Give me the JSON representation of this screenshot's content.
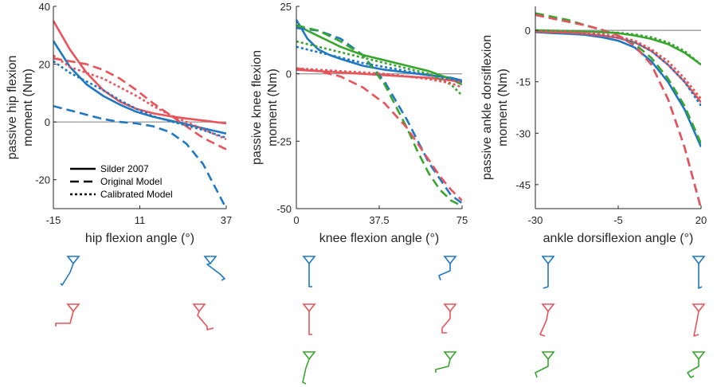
{
  "colors": {
    "blue": "#1f78c1",
    "red": "#e8545a",
    "green": "#38a52e",
    "axis": "#262626",
    "zero": "#a0a0a0"
  },
  "legend": {
    "items": [
      {
        "label": "Silder 2007",
        "style": "solid"
      },
      {
        "label": "Original Model",
        "style": "dashed"
      },
      {
        "label": "Calibrated Model",
        "style": "dotted"
      }
    ]
  },
  "chart_data": [
    {
      "type": "line",
      "title": "",
      "xlabel": "hip flexion angle (°)",
      "ylabel": [
        "passive hip flexion",
        "moment (Nm)"
      ],
      "xlim": [
        -15,
        37
      ],
      "ylim": [
        -30,
        40
      ],
      "xticks": [
        -15,
        11,
        37
      ],
      "yticks": [
        -20,
        0,
        20,
        40
      ],
      "xtick_labels": [
        "-15",
        "11",
        "37"
      ],
      "ytick_labels": [
        "-20",
        "0",
        "20",
        "40"
      ],
      "series": [
        {
          "color": "red",
          "style": "solid",
          "x": [
            -15,
            -10,
            -5,
            0,
            5,
            10,
            15,
            20,
            25,
            30,
            37
          ],
          "y": [
            35,
            25,
            17,
            11,
            7,
            4.5,
            3,
            2,
            1.2,
            0.5,
            -0.5
          ]
        },
        {
          "color": "blue",
          "style": "solid",
          "x": [
            -15,
            -10,
            -5,
            0,
            5,
            10,
            15,
            20,
            25,
            30,
            37
          ],
          "y": [
            28,
            19,
            13,
            9,
            6,
            3.5,
            1.8,
            0.5,
            -0.8,
            -2.2,
            -4
          ]
        },
        {
          "color": "red",
          "style": "dashed",
          "x": [
            -15,
            -10,
            -5,
            0,
            5,
            10,
            15,
            20,
            25,
            30,
            37
          ],
          "y": [
            22,
            21,
            20,
            18,
            15,
            11,
            6.5,
            2.5,
            -1.5,
            -5.5,
            -9.5
          ]
        },
        {
          "color": "blue",
          "style": "dashed",
          "x": [
            -15,
            -10,
            -5,
            0,
            5,
            10,
            15,
            20,
            25,
            30,
            37
          ],
          "y": [
            5.5,
            4,
            2.5,
            1,
            0,
            -0.5,
            -1.5,
            -3.5,
            -7.5,
            -14.5,
            -30
          ]
        },
        {
          "color": "red",
          "style": "dotted",
          "x": [
            -15,
            -10,
            -5,
            0,
            5,
            10,
            15,
            20,
            25,
            30,
            37
          ],
          "y": [
            23,
            19,
            17,
            15,
            12,
            9,
            5.5,
            2.5,
            0,
            -2.5,
            -6
          ]
        },
        {
          "color": "blue",
          "style": "dotted",
          "x": [
            -15,
            -10,
            -5,
            0,
            5,
            10,
            15,
            20,
            25,
            30,
            37
          ],
          "y": [
            21,
            17,
            14,
            11,
            7.5,
            4.5,
            2,
            0.3,
            -1.2,
            -2.8,
            -5.5
          ]
        }
      ]
    },
    {
      "type": "line",
      "title": "",
      "xlabel": "knee flexion angle (°)",
      "ylabel": [
        "passive knee flexion",
        "moment (Nm)"
      ],
      "xlim": [
        0,
        75
      ],
      "ylim": [
        -50,
        25
      ],
      "xticks": [
        0,
        37.5,
        75
      ],
      "yticks": [
        -50,
        -25,
        0,
        25
      ],
      "xtick_labels": [
        "0",
        "37.5",
        "75"
      ],
      "ytick_labels": [
        "-50",
        "-25",
        "0",
        "25"
      ],
      "series": [
        {
          "color": "blue",
          "style": "solid",
          "x": [
            0,
            5,
            10,
            15,
            20,
            30,
            40,
            50,
            60,
            70,
            75
          ],
          "y": [
            20,
            13,
            9,
            7,
            5.5,
            3,
            1.5,
            0.5,
            -0.5,
            -1.5,
            -2.5
          ]
        },
        {
          "color": "green",
          "style": "solid",
          "x": [
            0,
            5,
            10,
            15,
            20,
            30,
            40,
            50,
            60,
            70,
            75
          ],
          "y": [
            18,
            16,
            14,
            12,
            10,
            7,
            5,
            3,
            1,
            -2,
            -4
          ]
        },
        {
          "color": "red",
          "style": "solid",
          "x": [
            0,
            10,
            20,
            30,
            40,
            50,
            60,
            70,
            75
          ],
          "y": [
            1.5,
            1,
            0.5,
            0,
            -0.5,
            -1,
            -1.5,
            -2.5,
            -3
          ]
        },
        {
          "color": "blue",
          "style": "dashed",
          "x": [
            0,
            10,
            20,
            30,
            40,
            50,
            60,
            70,
            75
          ],
          "y": [
            17,
            16,
            13,
            7,
            -3,
            -17,
            -33,
            -45,
            -48
          ]
        },
        {
          "color": "green",
          "style": "dashed",
          "x": [
            0,
            10,
            20,
            30,
            40,
            50,
            55,
            60,
            65,
            70,
            75
          ],
          "y": [
            18,
            16,
            12,
            7,
            -4,
            -20,
            -29,
            -37,
            -43,
            -47,
            -49
          ]
        },
        {
          "color": "red",
          "style": "dashed",
          "x": [
            0,
            10,
            20,
            30,
            40,
            50,
            55,
            60,
            65,
            70,
            75
          ],
          "y": [
            2,
            1,
            -1,
            -5,
            -11,
            -20,
            -26,
            -32,
            -38,
            -43,
            -47
          ]
        },
        {
          "color": "blue",
          "style": "dotted",
          "x": [
            0,
            10,
            20,
            30,
            40,
            50,
            60,
            70,
            75
          ],
          "y": [
            10,
            8,
            6,
            4,
            2.5,
            1,
            -0.5,
            -2,
            -3
          ]
        },
        {
          "color": "green",
          "style": "dotted",
          "x": [
            0,
            10,
            20,
            30,
            40,
            50,
            60,
            70,
            75
          ],
          "y": [
            12,
            10,
            8,
            6,
            4,
            2,
            0,
            -4,
            -8
          ]
        },
        {
          "color": "red",
          "style": "dotted",
          "x": [
            0,
            10,
            20,
            30,
            40,
            50,
            60,
            70,
            75
          ],
          "y": [
            2,
            1.5,
            1,
            0.5,
            0,
            -1,
            -2,
            -3.5,
            -5
          ]
        }
      ]
    },
    {
      "type": "line",
      "title": "",
      "xlabel": "ankle dorsiflexion angle (°)",
      "ylabel": [
        "passive ankle dorsiflexion",
        "moment (Nm)"
      ],
      "xlim": [
        -30,
        20
      ],
      "ylim": [
        -52,
        7
      ],
      "xticks": [
        -30,
        -5,
        20
      ],
      "yticks": [
        -45,
        -30,
        -15,
        0
      ],
      "xtick_labels": [
        "-30",
        "-5",
        "20"
      ],
      "ytick_labels": [
        "-45",
        "-30",
        "-15",
        "0"
      ],
      "series": [
        {
          "color": "blue",
          "style": "solid",
          "x": [
            -30,
            -25,
            -20,
            -15,
            -10,
            -5,
            0,
            5,
            10,
            15,
            20
          ],
          "y": [
            -0.5,
            -0.8,
            -1,
            -1.3,
            -2,
            -3,
            -5,
            -9,
            -15,
            -23,
            -34
          ]
        },
        {
          "color": "red",
          "style": "solid",
          "x": [
            -30,
            -25,
            -20,
            -15,
            -10,
            -5,
            0,
            5,
            10,
            15,
            20
          ],
          "y": [
            -0.3,
            -0.5,
            -0.7,
            -1,
            -1.5,
            -2.2,
            -3.5,
            -6,
            -10,
            -15,
            -21
          ]
        },
        {
          "color": "green",
          "style": "solid",
          "x": [
            -30,
            -20,
            -10,
            -5,
            0,
            5,
            10,
            15,
            20
          ],
          "y": [
            0,
            -0.2,
            -0.5,
            -0.8,
            -1.5,
            -2.5,
            -4,
            -6.5,
            -10
          ]
        },
        {
          "color": "green",
          "style": "dashed",
          "x": [
            -30,
            -25,
            -20,
            -15,
            -10,
            -5,
            0,
            5,
            10,
            15,
            20
          ],
          "y": [
            5,
            4,
            3,
            1.5,
            0.2,
            -1.5,
            -4,
            -8,
            -14,
            -22,
            -33
          ]
        },
        {
          "color": "blue",
          "style": "dashed",
          "x": [
            -30,
            -25,
            -20,
            -15,
            -10,
            -5,
            0,
            5,
            10,
            15,
            20
          ],
          "y": [
            4.5,
            3.5,
            2.5,
            1.5,
            0.2,
            -1.5,
            -4.5,
            -10,
            -20,
            -34,
            -52
          ]
        },
        {
          "color": "red",
          "style": "dashed",
          "x": [
            -30,
            -25,
            -20,
            -15,
            -10,
            -5,
            0,
            5,
            10,
            15,
            20
          ],
          "y": [
            4.5,
            3.5,
            2.5,
            1.5,
            0.2,
            -1.5,
            -4.5,
            -10,
            -20,
            -34,
            -52
          ]
        },
        {
          "color": "green",
          "style": "dotted",
          "x": [
            -30,
            -20,
            -10,
            -5,
            0,
            5,
            10,
            15,
            20
          ],
          "y": [
            0,
            -0.2,
            -0.5,
            -0.7,
            -1.2,
            -2,
            -3.5,
            -6,
            -10
          ]
        },
        {
          "color": "blue",
          "style": "dotted",
          "x": [
            -30,
            -20,
            -10,
            -5,
            0,
            5,
            10,
            15,
            20
          ],
          "y": [
            -0.3,
            -0.5,
            -1.2,
            -2,
            -3.5,
            -6,
            -10,
            -15,
            -22
          ]
        },
        {
          "color": "red",
          "style": "dotted",
          "x": [
            -30,
            -20,
            -10,
            -5,
            0,
            5,
            10,
            15,
            20
          ],
          "y": [
            -0.3,
            -0.4,
            -1,
            -1.8,
            -3,
            -5.5,
            -9,
            -14,
            -20
          ]
        }
      ]
    }
  ]
}
